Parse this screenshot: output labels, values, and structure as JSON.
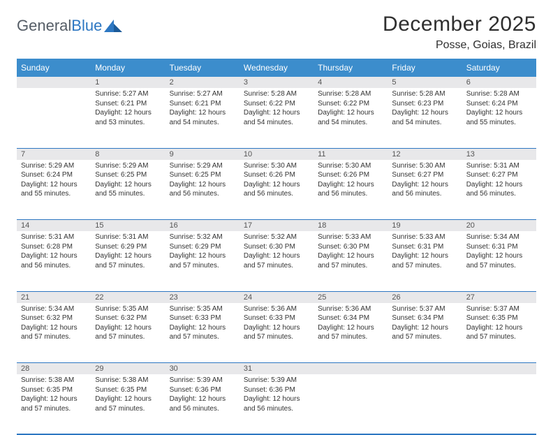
{
  "logo": {
    "text_gray": "General",
    "text_blue": "Blue",
    "triangle_fill": "#2d77c2"
  },
  "title": "December 2025",
  "location": "Posse, Goias, Brazil",
  "colors": {
    "header_bg": "#3c8dcc",
    "header_text": "#ffffff",
    "daynum_bg": "#e8e8ea",
    "rule": "#2d77c2",
    "body_text": "#333333",
    "logo_gray": "#555d66",
    "logo_blue": "#2d77c2"
  },
  "weekdays": [
    "Sunday",
    "Monday",
    "Tuesday",
    "Wednesday",
    "Thursday",
    "Friday",
    "Saturday"
  ],
  "weeks": [
    [
      {
        "num": "",
        "lines": []
      },
      {
        "num": "1",
        "lines": [
          "Sunrise: 5:27 AM",
          "Sunset: 6:21 PM",
          "Daylight: 12 hours and 53 minutes."
        ]
      },
      {
        "num": "2",
        "lines": [
          "Sunrise: 5:27 AM",
          "Sunset: 6:21 PM",
          "Daylight: 12 hours and 54 minutes."
        ]
      },
      {
        "num": "3",
        "lines": [
          "Sunrise: 5:28 AM",
          "Sunset: 6:22 PM",
          "Daylight: 12 hours and 54 minutes."
        ]
      },
      {
        "num": "4",
        "lines": [
          "Sunrise: 5:28 AM",
          "Sunset: 6:22 PM",
          "Daylight: 12 hours and 54 minutes."
        ]
      },
      {
        "num": "5",
        "lines": [
          "Sunrise: 5:28 AM",
          "Sunset: 6:23 PM",
          "Daylight: 12 hours and 54 minutes."
        ]
      },
      {
        "num": "6",
        "lines": [
          "Sunrise: 5:28 AM",
          "Sunset: 6:24 PM",
          "Daylight: 12 hours and 55 minutes."
        ]
      }
    ],
    [
      {
        "num": "7",
        "lines": [
          "Sunrise: 5:29 AM",
          "Sunset: 6:24 PM",
          "Daylight: 12 hours and 55 minutes."
        ]
      },
      {
        "num": "8",
        "lines": [
          "Sunrise: 5:29 AM",
          "Sunset: 6:25 PM",
          "Daylight: 12 hours and 55 minutes."
        ]
      },
      {
        "num": "9",
        "lines": [
          "Sunrise: 5:29 AM",
          "Sunset: 6:25 PM",
          "Daylight: 12 hours and 56 minutes."
        ]
      },
      {
        "num": "10",
        "lines": [
          "Sunrise: 5:30 AM",
          "Sunset: 6:26 PM",
          "Daylight: 12 hours and 56 minutes."
        ]
      },
      {
        "num": "11",
        "lines": [
          "Sunrise: 5:30 AM",
          "Sunset: 6:26 PM",
          "Daylight: 12 hours and 56 minutes."
        ]
      },
      {
        "num": "12",
        "lines": [
          "Sunrise: 5:30 AM",
          "Sunset: 6:27 PM",
          "Daylight: 12 hours and 56 minutes."
        ]
      },
      {
        "num": "13",
        "lines": [
          "Sunrise: 5:31 AM",
          "Sunset: 6:27 PM",
          "Daylight: 12 hours and 56 minutes."
        ]
      }
    ],
    [
      {
        "num": "14",
        "lines": [
          "Sunrise: 5:31 AM",
          "Sunset: 6:28 PM",
          "Daylight: 12 hours and 56 minutes."
        ]
      },
      {
        "num": "15",
        "lines": [
          "Sunrise: 5:31 AM",
          "Sunset: 6:29 PM",
          "Daylight: 12 hours and 57 minutes."
        ]
      },
      {
        "num": "16",
        "lines": [
          "Sunrise: 5:32 AM",
          "Sunset: 6:29 PM",
          "Daylight: 12 hours and 57 minutes."
        ]
      },
      {
        "num": "17",
        "lines": [
          "Sunrise: 5:32 AM",
          "Sunset: 6:30 PM",
          "Daylight: 12 hours and 57 minutes."
        ]
      },
      {
        "num": "18",
        "lines": [
          "Sunrise: 5:33 AM",
          "Sunset: 6:30 PM",
          "Daylight: 12 hours and 57 minutes."
        ]
      },
      {
        "num": "19",
        "lines": [
          "Sunrise: 5:33 AM",
          "Sunset: 6:31 PM",
          "Daylight: 12 hours and 57 minutes."
        ]
      },
      {
        "num": "20",
        "lines": [
          "Sunrise: 5:34 AM",
          "Sunset: 6:31 PM",
          "Daylight: 12 hours and 57 minutes."
        ]
      }
    ],
    [
      {
        "num": "21",
        "lines": [
          "Sunrise: 5:34 AM",
          "Sunset: 6:32 PM",
          "Daylight: 12 hours and 57 minutes."
        ]
      },
      {
        "num": "22",
        "lines": [
          "Sunrise: 5:35 AM",
          "Sunset: 6:32 PM",
          "Daylight: 12 hours and 57 minutes."
        ]
      },
      {
        "num": "23",
        "lines": [
          "Sunrise: 5:35 AM",
          "Sunset: 6:33 PM",
          "Daylight: 12 hours and 57 minutes."
        ]
      },
      {
        "num": "24",
        "lines": [
          "Sunrise: 5:36 AM",
          "Sunset: 6:33 PM",
          "Daylight: 12 hours and 57 minutes."
        ]
      },
      {
        "num": "25",
        "lines": [
          "Sunrise: 5:36 AM",
          "Sunset: 6:34 PM",
          "Daylight: 12 hours and 57 minutes."
        ]
      },
      {
        "num": "26",
        "lines": [
          "Sunrise: 5:37 AM",
          "Sunset: 6:34 PM",
          "Daylight: 12 hours and 57 minutes."
        ]
      },
      {
        "num": "27",
        "lines": [
          "Sunrise: 5:37 AM",
          "Sunset: 6:35 PM",
          "Daylight: 12 hours and 57 minutes."
        ]
      }
    ],
    [
      {
        "num": "28",
        "lines": [
          "Sunrise: 5:38 AM",
          "Sunset: 6:35 PM",
          "Daylight: 12 hours and 57 minutes."
        ]
      },
      {
        "num": "29",
        "lines": [
          "Sunrise: 5:38 AM",
          "Sunset: 6:35 PM",
          "Daylight: 12 hours and 57 minutes."
        ]
      },
      {
        "num": "30",
        "lines": [
          "Sunrise: 5:39 AM",
          "Sunset: 6:36 PM",
          "Daylight: 12 hours and 56 minutes."
        ]
      },
      {
        "num": "31",
        "lines": [
          "Sunrise: 5:39 AM",
          "Sunset: 6:36 PM",
          "Daylight: 12 hours and 56 minutes."
        ]
      },
      {
        "num": "",
        "lines": []
      },
      {
        "num": "",
        "lines": []
      },
      {
        "num": "",
        "lines": []
      }
    ]
  ]
}
